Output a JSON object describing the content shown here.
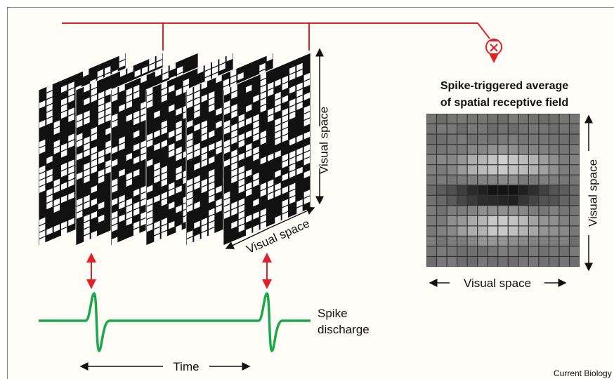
{
  "figure": {
    "rf_title": [
      "Spike-triggered average",
      "of spatial receptive field"
    ],
    "labels": {
      "frame_vertical": "Visual space",
      "frame_depth": "Visual space",
      "rf_vertical": "Visual space",
      "rf_horizontal": "Visual space",
      "spike": [
        "Spike",
        "discharge"
      ],
      "time": "Time"
    },
    "credit": "Current Biology"
  }
}
